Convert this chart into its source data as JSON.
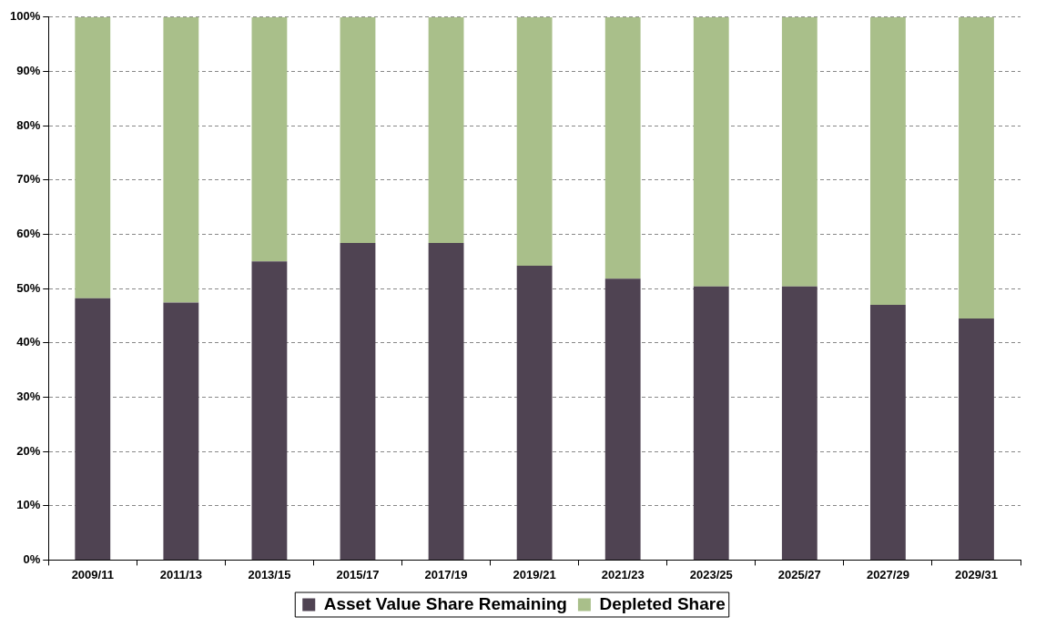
{
  "chart_data": {
    "type": "bar",
    "stacked": true,
    "categories": [
      "2009/11",
      "2011/13",
      "2013/15",
      "2015/17",
      "2017/19",
      "2019/21",
      "2021/23",
      "2023/25",
      "2025/27",
      "2027/29",
      "2029/31"
    ],
    "series": [
      {
        "name": "Asset Value Share Remaining",
        "color": "#4f4352",
        "values": [
          48.2,
          47.4,
          55.0,
          58.4,
          58.4,
          54.2,
          51.8,
          50.4,
          50.4,
          47.0,
          44.5
        ]
      },
      {
        "name": "Depleted Share",
        "color": "#a9bf8a",
        "values": [
          51.8,
          52.6,
          45.0,
          41.6,
          41.6,
          45.8,
          48.2,
          49.6,
          49.6,
          53.0,
          55.5
        ]
      }
    ],
    "ylim": [
      0,
      100
    ],
    "yticks": [
      {
        "value": 0,
        "label": "0%"
      },
      {
        "value": 10,
        "label": "10%"
      },
      {
        "value": 20,
        "label": "20%"
      },
      {
        "value": 30,
        "label": "30%"
      },
      {
        "value": 40,
        "label": "40%"
      },
      {
        "value": 50,
        "label": "50%"
      },
      {
        "value": 60,
        "label": "60%"
      },
      {
        "value": 70,
        "label": "70%"
      },
      {
        "value": 80,
        "label": "80%"
      },
      {
        "value": 90,
        "label": "90%"
      },
      {
        "value": 100,
        "label": "100%"
      }
    ],
    "grid": "y",
    "legend": "bottom"
  }
}
